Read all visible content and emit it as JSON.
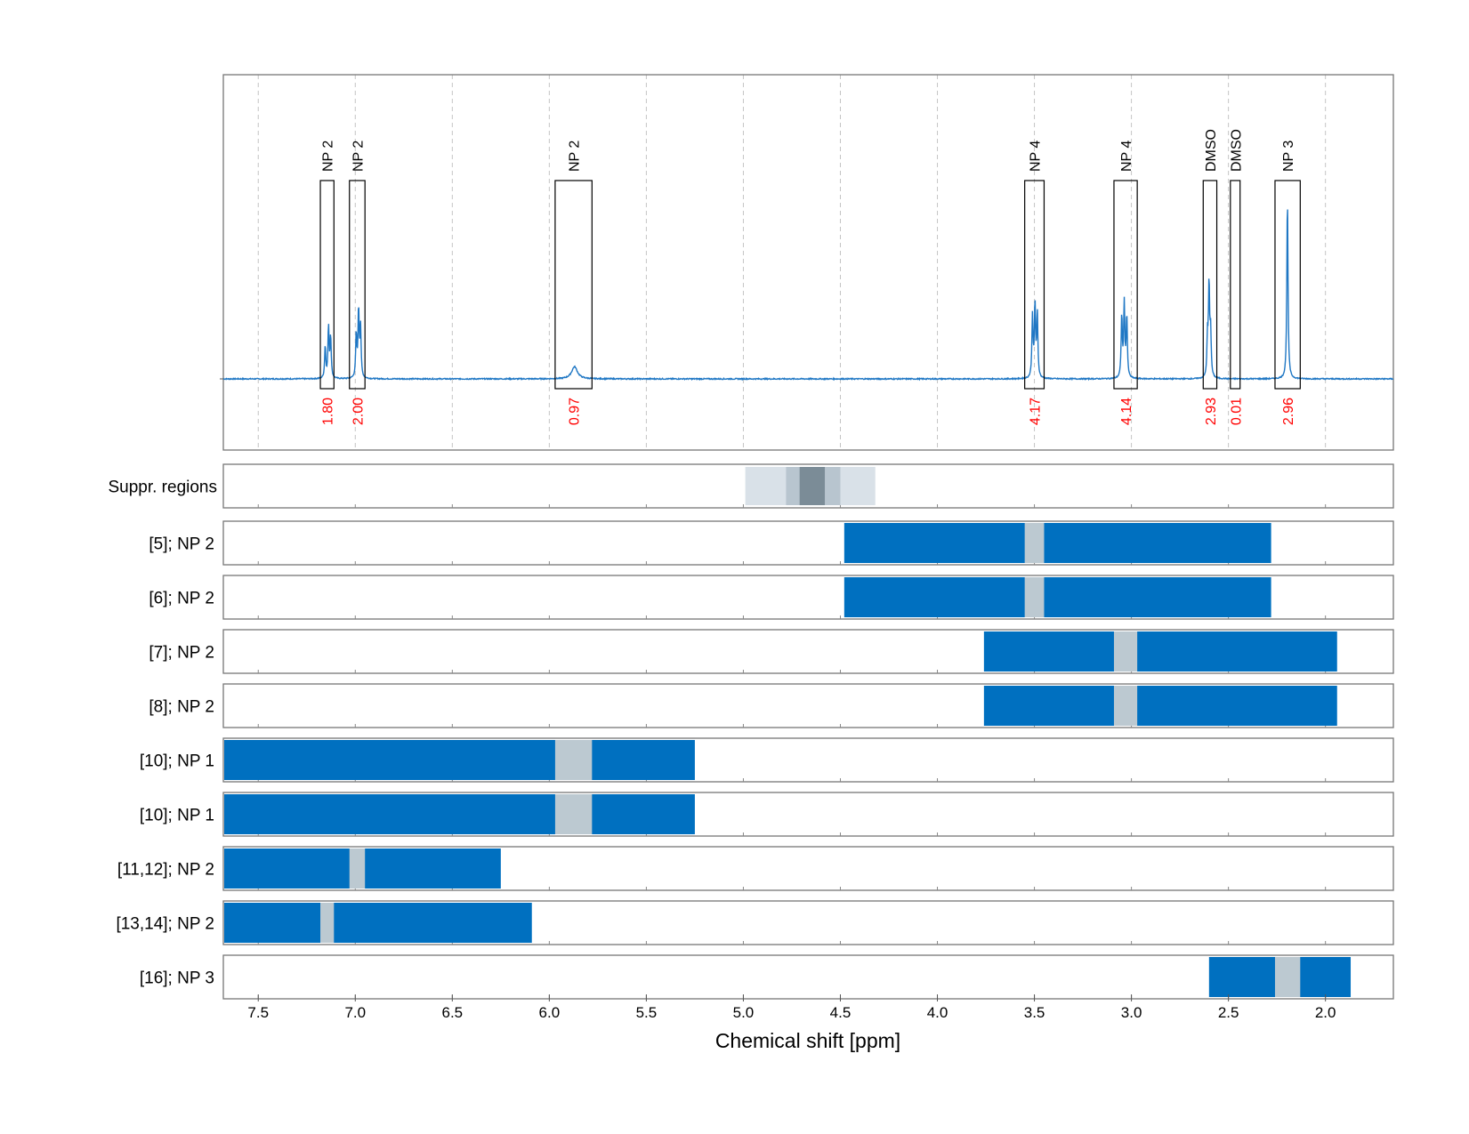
{
  "chart_data": {
    "type": "nmr_spectrum_with_region_bars",
    "xlabel": "Chemical shift [ppm]",
    "xlim": [
      7.68,
      1.65
    ],
    "x_reversed": true,
    "x_ticks": [
      7.5,
      7.0,
      6.5,
      6.0,
      5.5,
      5.0,
      4.5,
      4.0,
      3.5,
      3.0,
      2.5,
      2.0
    ],
    "x_tick_labels": [
      "7.5",
      "7.0",
      "6.5",
      "6.0",
      "5.5",
      "5.0",
      "4.5",
      "4.0",
      "3.5",
      "3.0",
      "2.5",
      "2.0"
    ],
    "grid": "vertical dashed",
    "colors": {
      "spectrum": "#1f77c4",
      "bar": "#0070c0",
      "bar_gap": "#bcc9d1",
      "integral_text": "#ff0000",
      "suppr_light": "#d9e1e8",
      "suppr_mid": "#b8c5cf",
      "suppr_dark": "#7b8c97"
    },
    "peaks": [
      {
        "label": "NP 2",
        "left": 7.18,
        "right": 7.11,
        "integral": "1.80",
        "lines": [
          [
            7.155,
            0.17
          ],
          [
            7.138,
            0.27
          ],
          [
            7.127,
            0.22
          ]
        ]
      },
      {
        "label": "NP 2",
        "left": 7.03,
        "right": 6.95,
        "integral": "2.00",
        "lines": [
          [
            6.995,
            0.23
          ],
          [
            6.983,
            0.36
          ],
          [
            6.973,
            0.27
          ]
        ]
      },
      {
        "label": "NP 2",
        "left": 5.97,
        "right": 5.78,
        "integral": "0.97",
        "broad": [
          5.87,
          0.065,
          0.018
        ]
      },
      {
        "label": "NP 4",
        "left": 3.55,
        "right": 3.45,
        "integral": "4.17",
        "lines": [
          [
            3.51,
            0.33
          ],
          [
            3.497,
            0.39
          ],
          [
            3.485,
            0.34
          ]
        ]
      },
      {
        "label": "NP 4",
        "left": 3.09,
        "right": 2.97,
        "integral": "4.14",
        "lines": [
          [
            3.05,
            0.33
          ],
          [
            3.037,
            0.39
          ],
          [
            3.024,
            0.33
          ]
        ]
      },
      {
        "label": "DMSO",
        "left": 2.63,
        "right": 2.56,
        "integral": "2.93",
        "lines": [
          [
            2.608,
            0.2
          ],
          [
            2.6,
            0.49
          ],
          [
            2.592,
            0.24
          ]
        ]
      },
      {
        "label": "DMSO",
        "left": 2.49,
        "right": 2.44,
        "integral": "0.01",
        "lines": []
      },
      {
        "label": "NP 3",
        "left": 2.26,
        "right": 2.13,
        "integral": "2.96",
        "lines": [
          [
            2.196,
            0.97
          ]
        ]
      }
    ],
    "suppression": {
      "label": "Suppr. regions",
      "bands": [
        {
          "from": 4.99,
          "to": 4.32,
          "level": "light"
        },
        {
          "from": 4.78,
          "to": 4.5,
          "level": "mid"
        },
        {
          "from": 4.71,
          "to": 4.58,
          "level": "dark"
        }
      ]
    },
    "rows": [
      {
        "label": "[5]; NP 2",
        "from": 4.48,
        "to": 2.28,
        "gap": [
          3.55,
          3.45
        ]
      },
      {
        "label": "[6]; NP 2",
        "from": 4.48,
        "to": 2.28,
        "gap": [
          3.55,
          3.45
        ]
      },
      {
        "label": "[7]; NP 2",
        "from": 3.76,
        "to": 1.94,
        "gap": [
          3.09,
          2.97
        ]
      },
      {
        "label": "[8]; NP 2",
        "from": 3.76,
        "to": 1.94,
        "gap": [
          3.09,
          2.97
        ]
      },
      {
        "label": "[10]; NP 1",
        "from": 7.68,
        "to": 5.25,
        "gap": [
          5.97,
          5.78
        ]
      },
      {
        "label": "[10]; NP 1",
        "from": 7.68,
        "to": 5.25,
        "gap": [
          5.97,
          5.78
        ]
      },
      {
        "label": "[11,12]; NP 2",
        "from": 7.68,
        "to": 6.25,
        "gap": [
          7.03,
          6.95
        ]
      },
      {
        "label": "[13,14]; NP 2",
        "from": 7.68,
        "to": 6.09,
        "gap": [
          7.18,
          7.11
        ]
      },
      {
        "label": "[16]; NP 3",
        "from": 2.6,
        "to": 1.87,
        "gap": [
          2.26,
          2.13
        ]
      }
    ]
  }
}
